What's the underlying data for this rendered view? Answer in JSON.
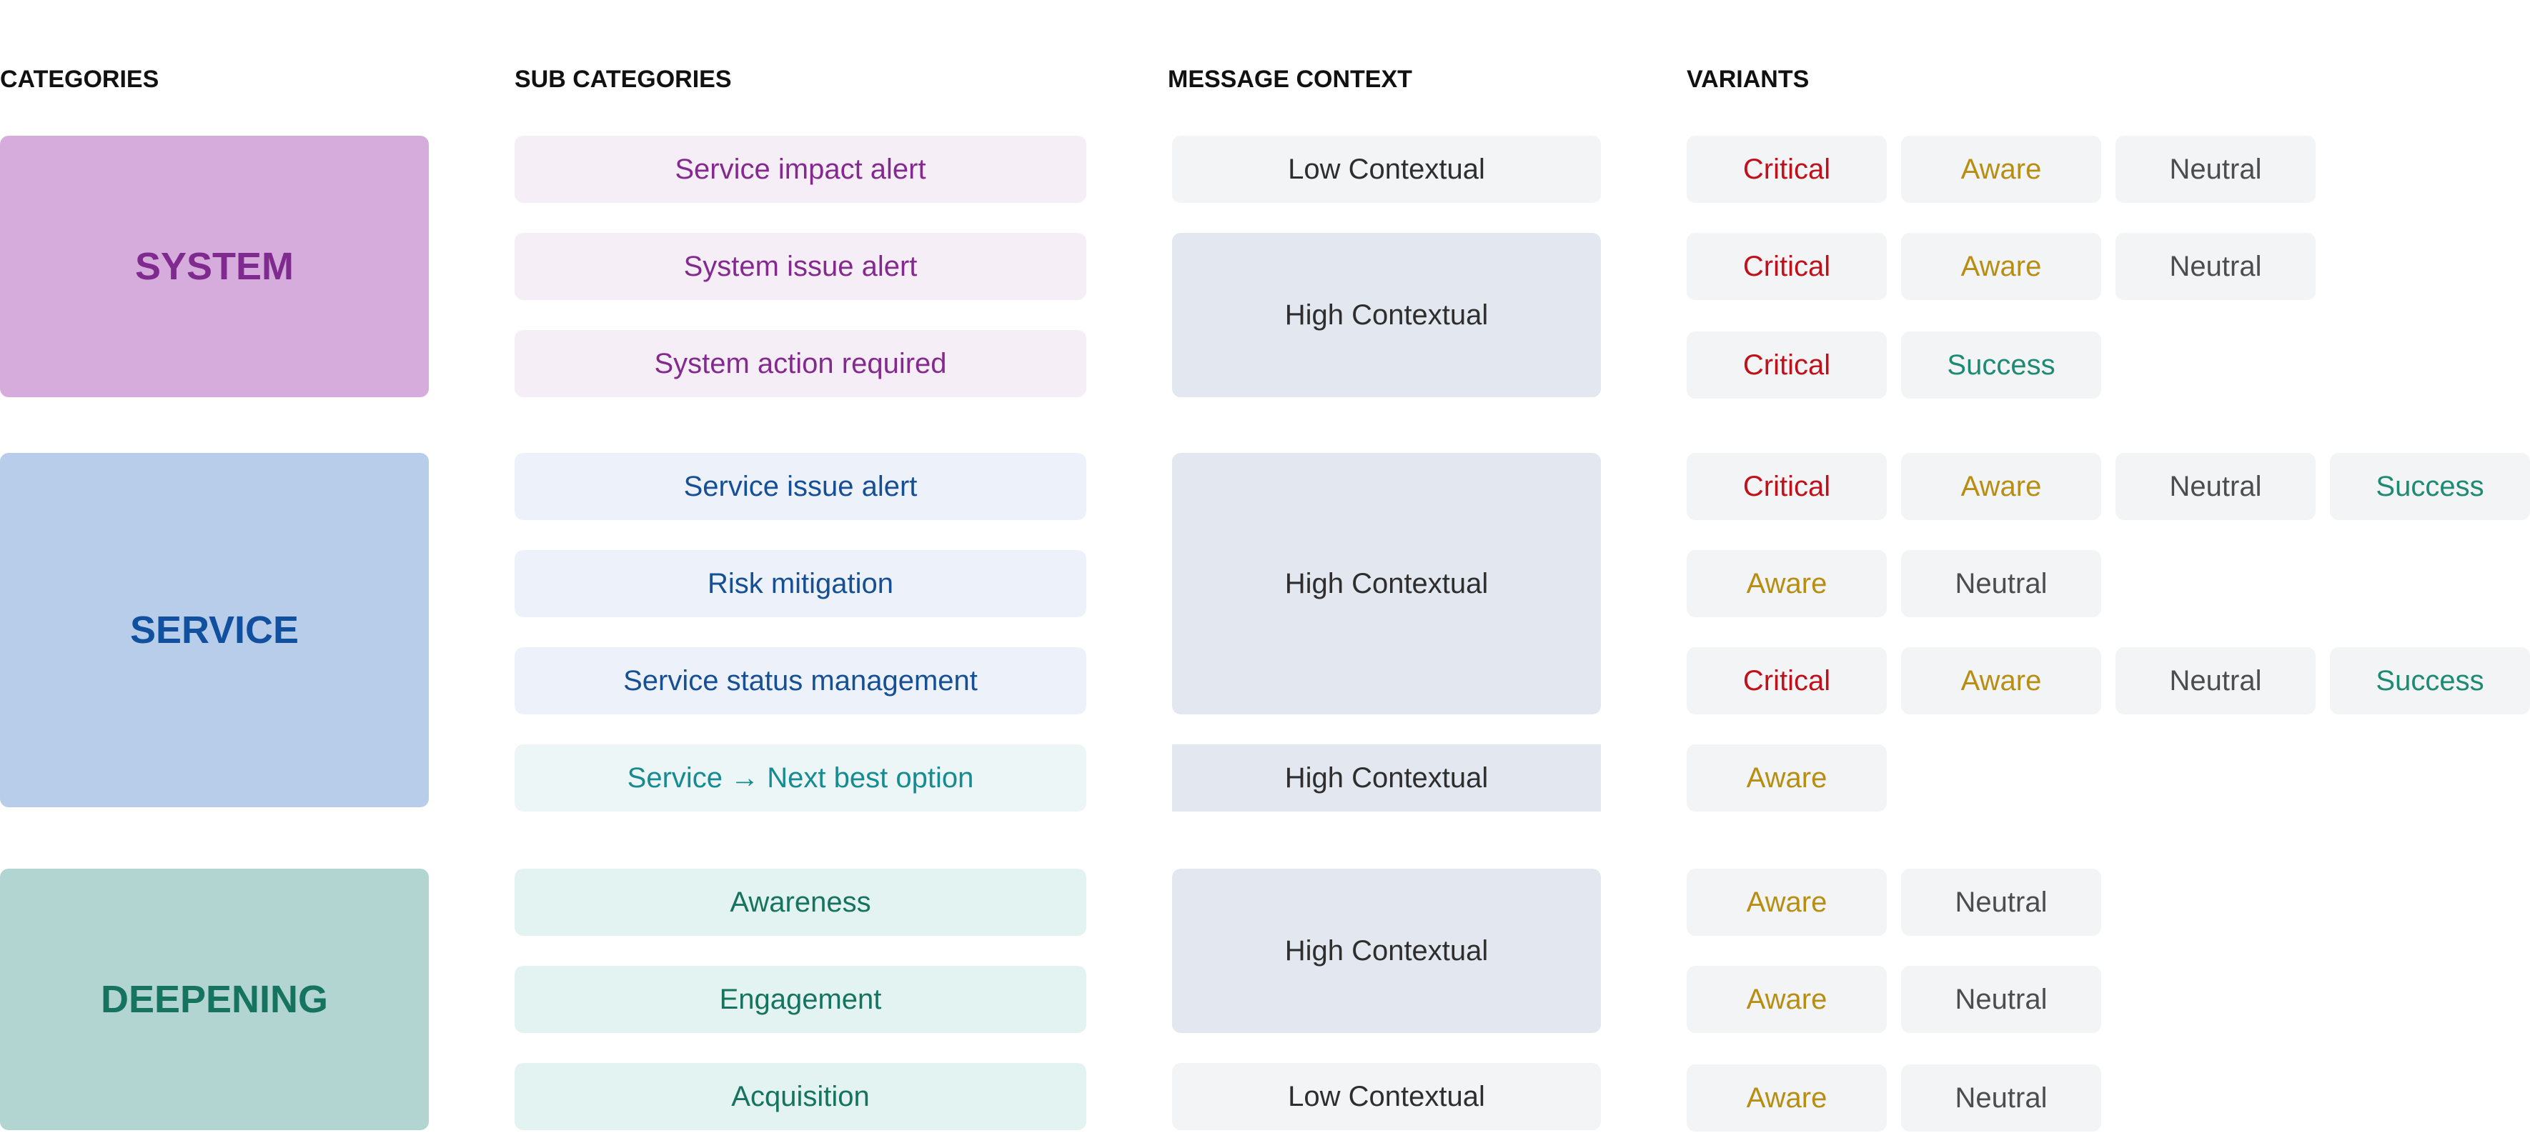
{
  "headers": {
    "categories": "CATEGORIES",
    "sub_categories": "SUB CATEGORIES",
    "message_context": "MESSAGE CONTEXT",
    "variants": "VARIANTS"
  },
  "categories": {
    "system": "SYSTEM",
    "service": "SERVICE",
    "deepening": "DEEPENING"
  },
  "sub_categories": [
    "Service impact alert",
    "System issue alert",
    "System action required",
    "Service issue alert",
    "Risk mitigation",
    "Service status management",
    "Service → Next best option",
    "Awareness",
    "Engagement",
    "Acquisition"
  ],
  "contexts": [
    "Low Contextual",
    "High Contextual",
    "High Contextual",
    "High Contextual",
    "High Contextual",
    "Low Contextual"
  ],
  "variants": [
    [
      "Critical",
      "Aware",
      "Neutral"
    ],
    [
      "Critical",
      "Aware",
      "Neutral"
    ],
    [
      "Critical",
      "Success"
    ],
    [
      "Critical",
      "Aware",
      "Neutral",
      "Success"
    ],
    [
      "Aware",
      "Neutral"
    ],
    [
      "Critical",
      "Aware",
      "Neutral",
      "Success"
    ],
    [
      "Aware"
    ],
    [
      "Aware",
      "Neutral"
    ],
    [
      "Aware",
      "Neutral"
    ],
    [
      "Aware",
      "Neutral"
    ]
  ],
  "colors": {
    "critical": "#c0111a",
    "aware": "#b88e12",
    "neutral": "#4d4d4d",
    "success": "#1f8a73",
    "system": "#d6acdc",
    "service": "#b8cdea",
    "deepening": "#b2d5d2"
  }
}
